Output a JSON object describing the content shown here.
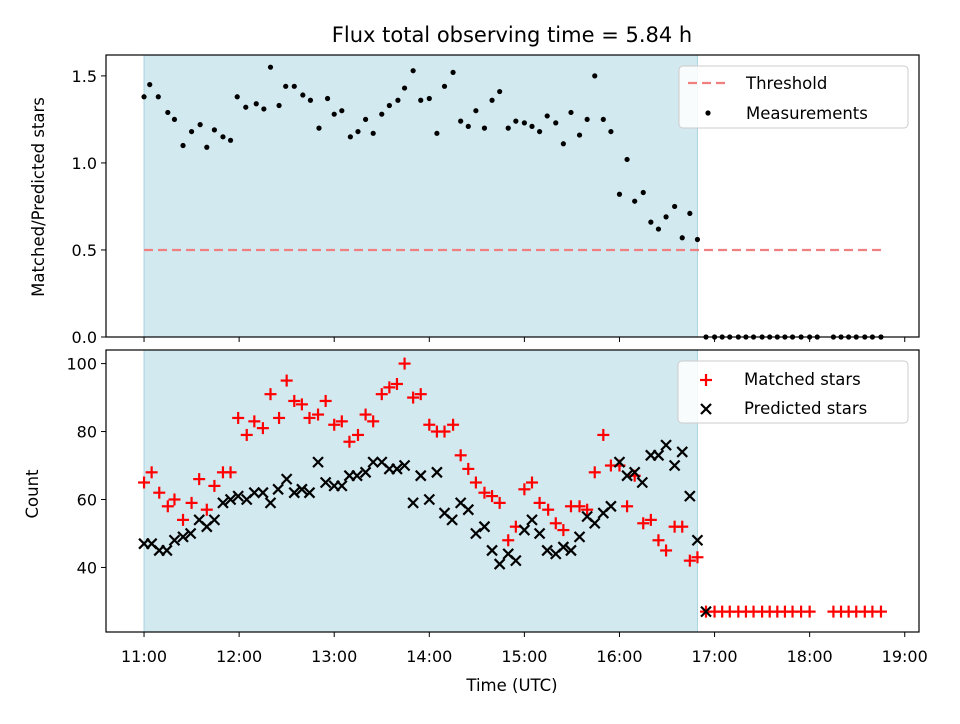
{
  "chart_data": {
    "title": "Flux total observing time = 5.84 h",
    "xlabel": "Time (UTC)",
    "x_ticks": [
      "11:00",
      "12:00",
      "13:00",
      "14:00",
      "15:00",
      "16:00",
      "17:00",
      "18:00",
      "19:00"
    ],
    "xlim_hours": [
      10.6,
      19.15
    ],
    "shaded_interval_hours": [
      11.0,
      16.82
    ],
    "shade_color": "#d3e9f0",
    "panels": [
      {
        "type": "scatter",
        "ylabel": "Matched/Predicted stars",
        "ylim": [
          0,
          1.62
        ],
        "y_ticks": [
          "0.0",
          "0.5",
          "1.0",
          "1.5"
        ],
        "y_tick_values": [
          0,
          0.5,
          1.0,
          1.5
        ],
        "legend": {
          "placement": "top-right",
          "entries": [
            "Threshold",
            "Measurements"
          ]
        },
        "threshold": {
          "name": "Threshold",
          "value": 0.5,
          "x_range": [
            11.0,
            18.75
          ],
          "color": "#f08080",
          "style": "dashed"
        },
        "measurements": {
          "name": "Measurements",
          "color": "#000000",
          "x": [
            11.0,
            11.06,
            11.15,
            11.25,
            11.32,
            11.41,
            11.5,
            11.59,
            11.66,
            11.74,
            11.83,
            11.91,
            11.98,
            12.07,
            12.18,
            12.26,
            12.33,
            12.42,
            12.49,
            12.58,
            12.67,
            12.75,
            12.84,
            12.93,
            13.0,
            13.08,
            13.17,
            13.25,
            13.33,
            13.41,
            13.5,
            13.58,
            13.67,
            13.74,
            13.83,
            13.91,
            14.0,
            14.08,
            14.16,
            14.25,
            14.33,
            14.41,
            14.49,
            14.58,
            14.66,
            14.74,
            14.83,
            14.91,
            15.0,
            15.08,
            15.16,
            15.24,
            15.33,
            15.41,
            15.49,
            15.58,
            15.66,
            15.74,
            15.83,
            15.91,
            16.0,
            16.08,
            16.16,
            16.25,
            16.33,
            16.41,
            16.49,
            16.58,
            16.66,
            16.74,
            16.82,
            16.91,
            17.0,
            17.08,
            17.16,
            17.25,
            17.33,
            17.41,
            17.5,
            17.58,
            17.66,
            17.74,
            17.82,
            17.91,
            18.0,
            18.08,
            18.25,
            18.33,
            18.41,
            18.49,
            18.58,
            18.66,
            18.75
          ],
          "y": [
            1.38,
            1.45,
            1.38,
            1.29,
            1.25,
            1.1,
            1.18,
            1.22,
            1.09,
            1.19,
            1.15,
            1.13,
            1.38,
            1.32,
            1.34,
            1.31,
            1.55,
            1.33,
            1.44,
            1.44,
            1.39,
            1.36,
            1.2,
            1.37,
            1.28,
            1.3,
            1.15,
            1.18,
            1.25,
            1.17,
            1.28,
            1.33,
            1.36,
            1.43,
            1.53,
            1.36,
            1.37,
            1.17,
            1.44,
            1.52,
            1.24,
            1.21,
            1.3,
            1.2,
            1.36,
            1.41,
            1.2,
            1.24,
            1.23,
            1.21,
            1.18,
            1.27,
            1.23,
            1.11,
            1.29,
            1.16,
            1.25,
            1.5,
            1.25,
            1.18,
            0.82,
            1.02,
            0.78,
            0.83,
            0.66,
            0.62,
            0.69,
            0.75,
            0.57,
            0.71,
            0.56,
            0,
            0,
            0,
            0,
            0,
            0,
            0,
            0,
            0,
            0,
            0,
            0,
            0,
            0,
            0,
            0,
            0,
            0,
            0,
            0,
            0,
            0
          ]
        }
      },
      {
        "type": "scatter",
        "ylabel": "Count",
        "ylim": [
          21,
          104
        ],
        "y_ticks": [
          "40",
          "60",
          "80",
          "100"
        ],
        "y_tick_values": [
          40,
          60,
          80,
          100
        ],
        "legend": {
          "placement": "top-right",
          "entries": [
            "Matched stars",
            "Predicted stars"
          ]
        },
        "series": [
          {
            "name": "Matched stars",
            "marker": "plus",
            "color": "#ff0000",
            "x": [
              11.0,
              11.08,
              11.16,
              11.25,
              11.32,
              11.41,
              11.5,
              11.58,
              11.66,
              11.74,
              11.83,
              11.91,
              11.99,
              12.08,
              12.16,
              12.25,
              12.33,
              12.42,
              12.5,
              12.58,
              12.66,
              12.74,
              12.83,
              12.91,
              13.0,
              13.08,
              13.16,
              13.25,
              13.33,
              13.41,
              13.5,
              13.58,
              13.66,
              13.74,
              13.83,
              13.91,
              14.0,
              14.08,
              14.16,
              14.25,
              14.33,
              14.41,
              14.49,
              14.58,
              14.66,
              14.74,
              14.83,
              14.91,
              15.0,
              15.08,
              15.16,
              15.25,
              15.33,
              15.41,
              15.49,
              15.58,
              15.66,
              15.74,
              15.83,
              15.91,
              16.0,
              16.08,
              16.16,
              16.25,
              16.33,
              16.41,
              16.49,
              16.58,
              16.66,
              16.74,
              16.82,
              16.91,
              17.0,
              17.08,
              17.16,
              17.25,
              17.33,
              17.41,
              17.5,
              17.58,
              17.66,
              17.74,
              17.82,
              17.91,
              18.0,
              18.25,
              18.33,
              18.41,
              18.49,
              18.58,
              18.66,
              18.75
            ],
            "y": [
              65,
              68,
              62,
              58,
              60,
              54,
              59,
              66,
              57,
              64,
              68,
              68,
              84,
              79,
              83,
              81,
              91,
              84,
              95,
              89,
              88,
              84,
              85,
              89,
              82,
              83,
              77,
              79,
              85,
              83,
              91,
              93,
              94,
              100,
              90,
              91,
              82,
              80,
              80,
              82,
              73,
              69,
              65,
              62,
              61,
              59,
              48,
              52,
              63,
              65,
              59,
              57,
              53,
              51,
              58,
              58,
              57,
              68,
              79,
              70,
              70,
              58,
              67,
              53,
              54,
              48,
              45,
              52,
              52,
              42,
              43,
              27,
              27,
              27,
              27,
              27,
              27,
              27,
              27,
              27,
              27,
              27,
              27,
              27,
              27,
              27,
              27,
              27,
              27,
              27,
              27,
              27
            ]
          },
          {
            "name": "Predicted stars",
            "marker": "x",
            "color": "#000000",
            "x": [
              11.0,
              11.08,
              11.16,
              11.24,
              11.32,
              11.41,
              11.49,
              11.58,
              11.66,
              11.74,
              11.83,
              11.91,
              11.99,
              12.08,
              12.16,
              12.25,
              12.33,
              12.41,
              12.5,
              12.58,
              12.66,
              12.74,
              12.83,
              12.91,
              13.0,
              13.08,
              13.16,
              13.24,
              13.33,
              13.41,
              13.5,
              13.58,
              13.66,
              13.74,
              13.83,
              13.91,
              14.0,
              14.08,
              14.16,
              14.24,
              14.33,
              14.41,
              14.49,
              14.58,
              14.66,
              14.74,
              14.83,
              14.91,
              15.0,
              15.08,
              15.16,
              15.24,
              15.33,
              15.41,
              15.49,
              15.58,
              15.66,
              15.74,
              15.83,
              15.91,
              16.0,
              16.08,
              16.16,
              16.24,
              16.33,
              16.41,
              16.49,
              16.58,
              16.66,
              16.74,
              16.82,
              16.91
            ],
            "y": [
              47,
              47,
              45,
              45,
              48,
              49,
              50,
              54,
              52,
              54,
              59,
              60,
              61,
              60,
              62,
              62,
              59,
              63,
              66,
              62,
              63,
              62,
              71,
              65,
              64,
              64,
              67,
              67,
              68,
              71,
              71,
              69,
              69,
              70,
              59,
              67,
              60,
              68,
              56,
              54,
              59,
              57,
              50,
              52,
              45,
              41,
              44,
              42,
              51,
              54,
              50,
              45,
              44,
              46,
              45,
              49,
              55,
              53,
              56,
              58,
              71,
              67,
              68,
              65,
              73,
              73,
              76,
              70,
              74,
              61,
              48,
              27
            ]
          }
        ]
      }
    ]
  }
}
